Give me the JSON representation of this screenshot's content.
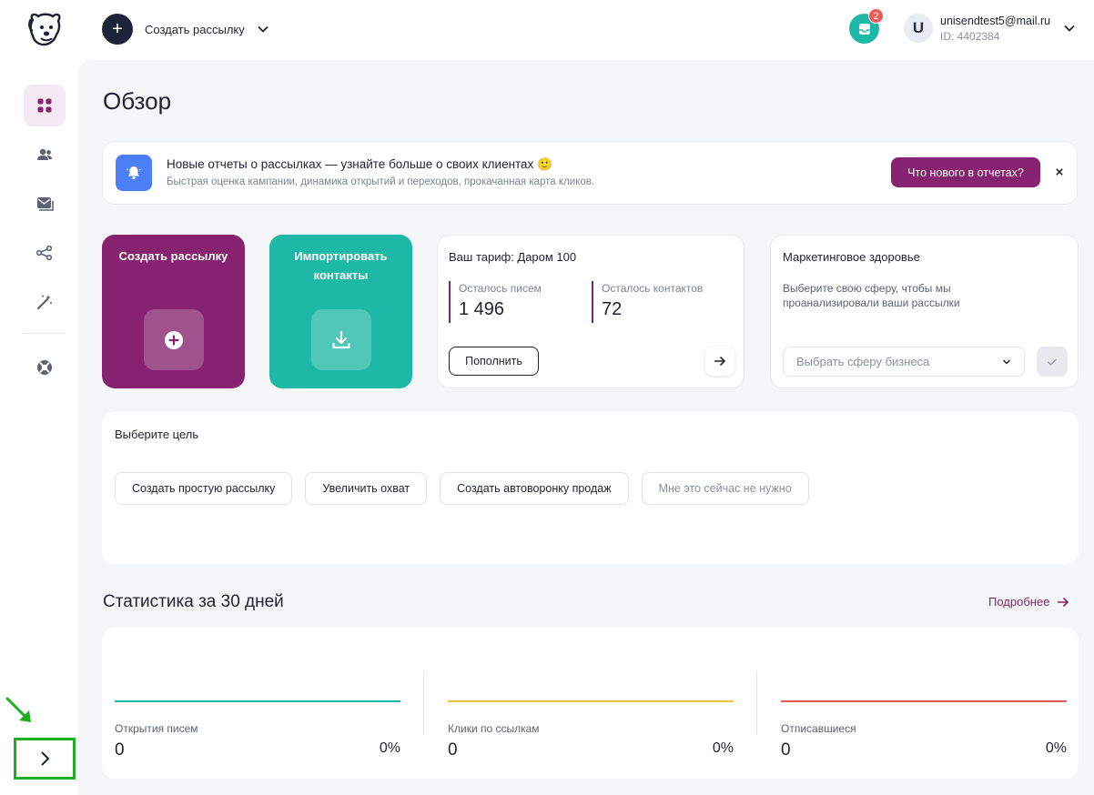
{
  "header": {
    "create_label": "Создать рассылку",
    "notifications_count": "2",
    "user": {
      "avatar_letter": "U",
      "email": "unisendtest5@mail.ru",
      "id": "ID: 4402384"
    }
  },
  "sidebar": {
    "items": [
      {
        "icon": "dashboard-icon",
        "active": true
      },
      {
        "icon": "contacts-icon",
        "active": false
      },
      {
        "icon": "campaigns-icon",
        "active": false
      },
      {
        "icon": "automation-icon",
        "active": false
      },
      {
        "icon": "magic-wand-icon",
        "active": false
      },
      {
        "icon": "support-icon",
        "active": false
      }
    ]
  },
  "page": {
    "title": "Обзор"
  },
  "banner": {
    "title": "Новые отчеты о рассылках — узнайте больше о своих клиентах 🙂",
    "subtitle": "Быстрая оценка кампании, динамика открытий и переходов, прокачанная карта кликов.",
    "button_label": "Что нового в отчетах?",
    "close_label": "×"
  },
  "cards": {
    "create": {
      "title": "Создать рассылку"
    },
    "import": {
      "title": "Импортировать контакты"
    },
    "tariff": {
      "title": "Ваш тариф: Даром 100",
      "letters_label": "Осталось писем",
      "letters_value": "1 496",
      "contacts_label": "Осталось контактов",
      "contacts_value": "72",
      "refill_label": "Пополнить"
    },
    "health": {
      "title": "Маркетинговое здоровье",
      "description": "Выберите свою сферу, чтобы мы проанализировали ваши рассылки",
      "select_placeholder": "Выбрать сферу бизнеса"
    }
  },
  "goal": {
    "title": "Выберите цель",
    "options": [
      "Создать простую рассылку",
      "Увеличить охват",
      "Создать автоворонку продаж",
      "Мне это сейчас не нужно"
    ]
  },
  "stats": {
    "title": "Статистика за 30 дней",
    "more_label": "Подробнее",
    "items": [
      {
        "label": "Открытия писем",
        "value": "0",
        "percent": "0%",
        "color": "#1eb8a6"
      },
      {
        "label": "Клики по ссылкам",
        "value": "0",
        "percent": "0%",
        "color": "#f0c040"
      },
      {
        "label": "Отписавшиеся",
        "value": "0",
        "percent": "0%",
        "color": "#e35b52"
      }
    ]
  },
  "colors": {
    "brand": "#86226f",
    "teal": "#1eb8a6",
    "notification_badge": "#ee5a52",
    "highlight_box": "#1fb021"
  }
}
